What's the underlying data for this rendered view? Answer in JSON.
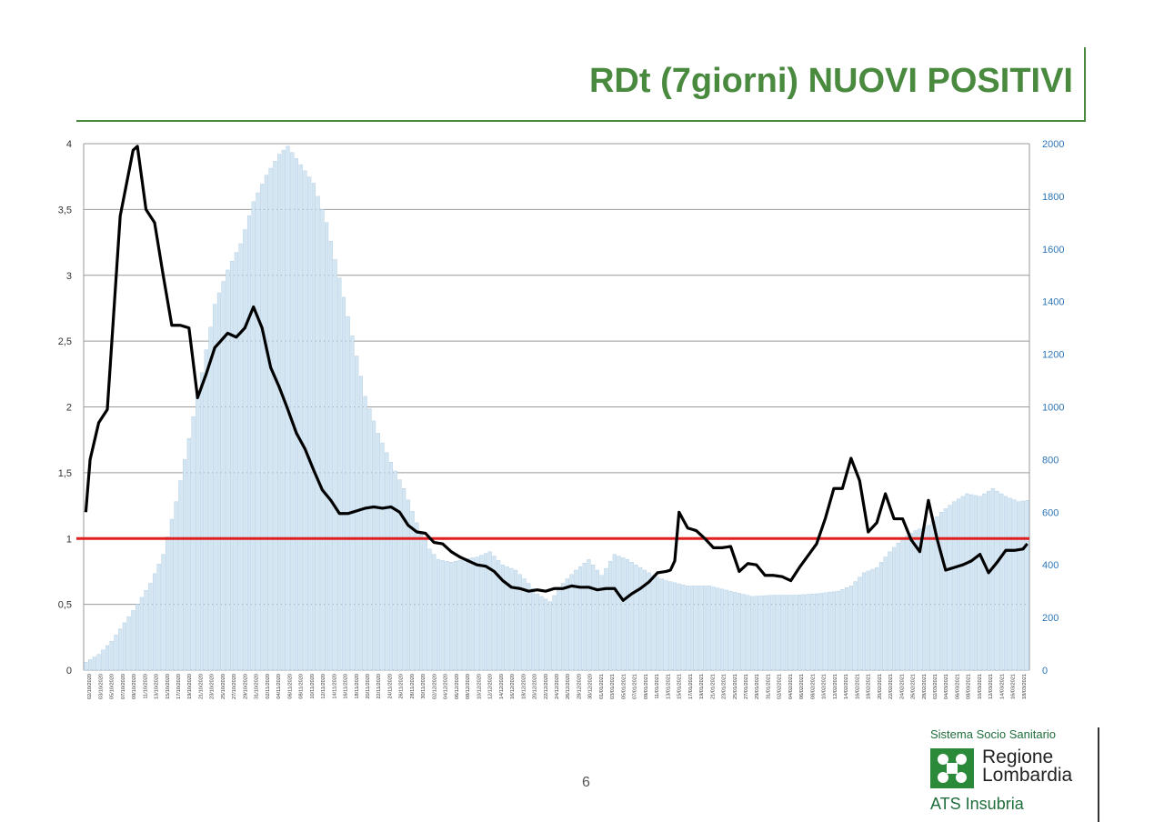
{
  "slide": {
    "title": "RDt (7giorni) NUOVI POSITIVI",
    "page_number": "6",
    "logo": {
      "top_text": "Sistema Socio Sanitario",
      "name_line1": "Regione",
      "name_line2": "Lombardia",
      "bottom_text": "ATS Insubria"
    }
  },
  "colors": {
    "title": "#4a8a3f",
    "bars": "#d5e6f3",
    "bar_border": "#a9c8e2",
    "line": "#000000",
    "reference_line": "#e02020",
    "right_axis_text": "#2e75b6",
    "logo_green": "#2a8a3a"
  },
  "chart_data": {
    "type": "bar+line",
    "x_start": "02/10/2020",
    "x_end": "18/03/2021",
    "x_tick_labels": [
      "02/10/2020",
      "03/10/2020",
      "05/10/2020",
      "07/10/2020",
      "09/10/2020",
      "11/10/2020",
      "13/10/2020",
      "15/10/2020",
      "17/10/2020",
      "19/10/2020",
      "21/10/2020",
      "23/10/2020",
      "25/10/2020",
      "27/10/2020",
      "29/10/2020",
      "31/10/2020",
      "02/11/2020",
      "04/11/2020",
      "06/11/2020",
      "08/11/2020",
      "10/11/2020",
      "12/11/2020",
      "14/11/2020",
      "16/11/2020",
      "18/11/2020",
      "20/11/2020",
      "22/11/2020",
      "24/11/2020",
      "26/11/2020",
      "28/11/2020",
      "30/11/2020",
      "02/12/2020",
      "04/12/2020",
      "06/12/2020",
      "08/12/2020",
      "10/12/2020",
      "12/12/2020",
      "14/12/2020",
      "16/12/2020",
      "18/12/2020",
      "20/12/2020",
      "22/12/2020",
      "24/12/2020",
      "26/12/2020",
      "28/12/2020",
      "30/12/2020",
      "01/01/2021",
      "03/01/2021",
      "05/01/2021",
      "07/01/2021",
      "09/01/2021",
      "11/01/2021",
      "13/01/2021",
      "15/01/2021",
      "17/01/2021",
      "19/01/2021",
      "21/01/2021",
      "23/01/2021",
      "25/01/2021",
      "27/01/2021",
      "29/01/2021",
      "31/01/2021",
      "02/02/2021",
      "04/02/2021",
      "06/02/2021",
      "08/02/2021",
      "10/02/2021",
      "12/02/2021",
      "14/02/2021",
      "16/02/2021",
      "18/02/2021",
      "20/02/2021",
      "22/02/2021",
      "24/02/2021",
      "26/02/2021",
      "28/02/2021",
      "02/03/2021",
      "04/03/2021",
      "06/03/2021",
      "08/03/2021",
      "10/03/2021",
      "12/03/2021",
      "14/03/2021",
      "16/03/2021",
      "18/03/2021"
    ],
    "y_left": {
      "ticks": [
        "0",
        "0,5",
        "1",
        "1,5",
        "2",
        "2,5",
        "3",
        "3,5",
        "4"
      ],
      "ylim": [
        0,
        4
      ]
    },
    "y_right": {
      "ticks": [
        "0",
        "200",
        "400",
        "600",
        "800",
        "1000",
        "1200",
        "1400",
        "1600",
        "1800",
        "2000"
      ],
      "ylim": [
        0,
        2000
      ]
    },
    "reference_line": {
      "axis": "left",
      "value": 1
    },
    "grid": true,
    "series": [
      {
        "kind": "bar",
        "axis": "right",
        "anchors": [
          [
            0,
            30
          ],
          [
            3,
            60
          ],
          [
            6,
            110
          ],
          [
            9,
            180
          ],
          [
            12,
            250
          ],
          [
            15,
            330
          ],
          [
            18,
            440
          ],
          [
            21,
            640
          ],
          [
            24,
            880
          ],
          [
            27,
            1130
          ],
          [
            30,
            1390
          ],
          [
            33,
            1520
          ],
          [
            36,
            1620
          ],
          [
            39,
            1780
          ],
          [
            42,
            1880
          ],
          [
            45,
            1960
          ],
          [
            47,
            1990
          ],
          [
            50,
            1920
          ],
          [
            53,
            1850
          ],
          [
            56,
            1700
          ],
          [
            59,
            1490
          ],
          [
            62,
            1270
          ],
          [
            65,
            1040
          ],
          [
            68,
            900
          ],
          [
            71,
            790
          ],
          [
            74,
            690
          ],
          [
            77,
            560
          ],
          [
            80,
            460
          ],
          [
            82,
            420
          ],
          [
            85,
            410
          ],
          [
            88,
            420
          ],
          [
            91,
            430
          ],
          [
            94,
            450
          ],
          [
            97,
            400
          ],
          [
            100,
            380
          ],
          [
            103,
            330
          ],
          [
            105,
            290
          ],
          [
            108,
            260
          ],
          [
            111,
            330
          ],
          [
            114,
            380
          ],
          [
            117,
            420
          ],
          [
            120,
            360
          ],
          [
            123,
            440
          ],
          [
            126,
            420
          ],
          [
            129,
            390
          ],
          [
            132,
            360
          ],
          [
            135,
            340
          ],
          [
            140,
            320
          ],
          [
            145,
            320
          ],
          [
            150,
            300
          ],
          [
            155,
            280
          ],
          [
            160,
            285
          ],
          [
            165,
            285
          ],
          [
            170,
            290
          ],
          [
            175,
            300
          ],
          [
            178,
            320
          ],
          [
            181,
            370
          ],
          [
            184,
            390
          ],
          [
            187,
            450
          ],
          [
            190,
            500
          ],
          [
            193,
            530
          ],
          [
            196,
            550
          ],
          [
            199,
            600
          ],
          [
            202,
            640
          ],
          [
            205,
            670
          ],
          [
            208,
            660
          ],
          [
            211,
            690
          ],
          [
            214,
            660
          ],
          [
            217,
            640
          ],
          [
            219,
            645
          ]
        ],
        "n_days": 220
      },
      {
        "kind": "line",
        "axis": "left",
        "anchors": [
          [
            0,
            1.2
          ],
          [
            1,
            1.6
          ],
          [
            3,
            1.88
          ],
          [
            5,
            1.98
          ],
          [
            8,
            3.45
          ],
          [
            11,
            3.95
          ],
          [
            12,
            3.98
          ],
          [
            14,
            3.5
          ],
          [
            16,
            3.4
          ],
          [
            18,
            3.0
          ],
          [
            20,
            2.62
          ],
          [
            22,
            2.62
          ],
          [
            24,
            2.6
          ],
          [
            26,
            2.07
          ],
          [
            28,
            2.25
          ],
          [
            30,
            2.45
          ],
          [
            33,
            2.56
          ],
          [
            35,
            2.53
          ],
          [
            37,
            2.6
          ],
          [
            39,
            2.76
          ],
          [
            41,
            2.6
          ],
          [
            43,
            2.3
          ],
          [
            45,
            2.15
          ],
          [
            47,
            1.98
          ],
          [
            49,
            1.8
          ],
          [
            51,
            1.68
          ],
          [
            53,
            1.52
          ],
          [
            55,
            1.37
          ],
          [
            57,
            1.29
          ],
          [
            59,
            1.19
          ],
          [
            61,
            1.19
          ],
          [
            63,
            1.21
          ],
          [
            65,
            1.23
          ],
          [
            67,
            1.24
          ],
          [
            69,
            1.23
          ],
          [
            71,
            1.24
          ],
          [
            73,
            1.2
          ],
          [
            75,
            1.1
          ],
          [
            77,
            1.05
          ],
          [
            79,
            1.04
          ],
          [
            81,
            0.97
          ],
          [
            83,
            0.96
          ],
          [
            85,
            0.9
          ],
          [
            87,
            0.86
          ],
          [
            89,
            0.83
          ],
          [
            91,
            0.8
          ],
          [
            93,
            0.79
          ],
          [
            95,
            0.75
          ],
          [
            97,
            0.68
          ],
          [
            99,
            0.63
          ],
          [
            101,
            0.62
          ],
          [
            103,
            0.6
          ],
          [
            105,
            0.61
          ],
          [
            107,
            0.6
          ],
          [
            109,
            0.62
          ],
          [
            111,
            0.62
          ],
          [
            113,
            0.64
          ],
          [
            115,
            0.63
          ],
          [
            117,
            0.63
          ],
          [
            119,
            0.61
          ],
          [
            121,
            0.62
          ],
          [
            123,
            0.62
          ],
          [
            125,
            0.53
          ],
          [
            127,
            0.58
          ],
          [
            129,
            0.62
          ],
          [
            131,
            0.67
          ],
          [
            133,
            0.74
          ],
          [
            135,
            0.75
          ],
          [
            136,
            0.76
          ],
          [
            137,
            0.83
          ],
          [
            138,
            1.2
          ],
          [
            140,
            1.08
          ],
          [
            142,
            1.06
          ],
          [
            144,
            1.0
          ],
          [
            146,
            0.93
          ],
          [
            148,
            0.93
          ],
          [
            150,
            0.94
          ],
          [
            152,
            0.75
          ],
          [
            154,
            0.81
          ],
          [
            156,
            0.8
          ],
          [
            158,
            0.72
          ],
          [
            160,
            0.72
          ],
          [
            162,
            0.71
          ],
          [
            164,
            0.68
          ],
          [
            166,
            0.78
          ],
          [
            168,
            0.87
          ],
          [
            170,
            0.96
          ],
          [
            172,
            1.15
          ],
          [
            174,
            1.38
          ],
          [
            176,
            1.38
          ],
          [
            178,
            1.61
          ],
          [
            180,
            1.44
          ],
          [
            182,
            1.05
          ],
          [
            184,
            1.12
          ],
          [
            186,
            1.34
          ],
          [
            188,
            1.15
          ],
          [
            190,
            1.15
          ],
          [
            192,
            0.99
          ],
          [
            194,
            0.9
          ],
          [
            196,
            1.29
          ],
          [
            198,
            1.0
          ],
          [
            200,
            0.76
          ],
          [
            202,
            0.78
          ],
          [
            204,
            0.8
          ],
          [
            206,
            0.83
          ],
          [
            208,
            0.88
          ],
          [
            210,
            0.74
          ],
          [
            212,
            0.82
          ],
          [
            214,
            0.91
          ],
          [
            216,
            0.91
          ],
          [
            218,
            0.92
          ],
          [
            219,
            0.96
          ]
        ],
        "n_days": 220
      }
    ]
  }
}
